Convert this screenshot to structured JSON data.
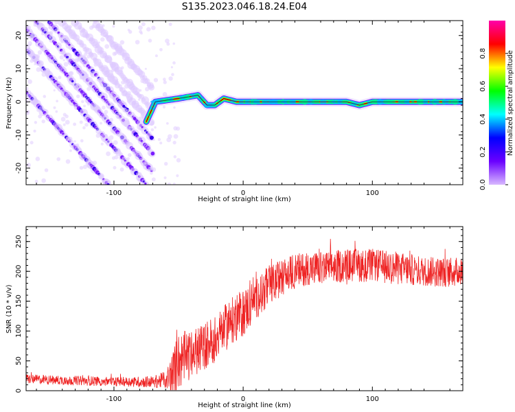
{
  "title": "S135.2023.046.18.24.E04",
  "colorbar": {
    "label": "Normalized spectral amplitude",
    "ticks": [
      "0.0",
      "0.2",
      "0.4",
      "0.6",
      "0.8"
    ],
    "tick_values": [
      0.0,
      0.2,
      0.4,
      0.6,
      0.8
    ],
    "range": [
      0,
      1
    ],
    "stops": [
      "#ffffff",
      "#d8b8ff",
      "#6a00ff",
      "#0000ff",
      "#00ffff",
      "#00ff00",
      "#ffff00",
      "#ff0000",
      "#ff00aa"
    ]
  },
  "chart_data": [
    {
      "type": "heatmap",
      "title": "",
      "xlabel": "Height of straight line (km)",
      "ylabel": "Frequency (Hz)",
      "xlim": [
        -168,
        170
      ],
      "ylim": [
        -25,
        24.5
      ],
      "xticks": [
        -100,
        0,
        100
      ],
      "xtick_labels": [
        "-100",
        "0",
        "100"
      ],
      "yticks": [
        -20,
        -10,
        0,
        10,
        20
      ],
      "ytick_labels": [
        "-20",
        "-10",
        "0",
        "10",
        "20"
      ],
      "diagonal_lines": {
        "slope_hz_per_km": -0.44,
        "x_start_km": [
          -168,
          -168,
          -168,
          -160,
          -150,
          -140,
          -130,
          -115
        ],
        "y_start_hz": [
          22,
          16,
          3,
          24,
          24,
          24,
          24,
          24
        ],
        "ends_near_km": -70
      },
      "signal_path": [
        {
          "x": -75,
          "y": -6
        },
        {
          "x": -68,
          "y": 0
        },
        {
          "x": -50,
          "y": 1
        },
        {
          "x": -35,
          "y": 2
        },
        {
          "x": -28,
          "y": -1
        },
        {
          "x": -22,
          "y": -1
        },
        {
          "x": -15,
          "y": 1
        },
        {
          "x": -5,
          "y": 0
        },
        {
          "x": 80,
          "y": 0
        },
        {
          "x": 90,
          "y": -1
        },
        {
          "x": 100,
          "y": 0
        },
        {
          "x": 170,
          "y": 0
        }
      ]
    },
    {
      "type": "line",
      "title": "",
      "xlabel": "Height of straight line (km)",
      "ylabel": "SNR (10 * v/v)",
      "xlim": [
        -168,
        170
      ],
      "ylim": [
        0,
        275
      ],
      "xticks": [
        -100,
        0,
        100
      ],
      "xtick_labels": [
        "-100",
        "0",
        "100"
      ],
      "yticks": [
        0,
        50,
        100,
        150,
        200,
        250
      ],
      "ytick_labels": [
        "0",
        "50",
        "100",
        "150",
        "200",
        "250"
      ],
      "color": "#ee2222",
      "series": [
        {
          "name": "SNR",
          "x": [
            -168,
            -150,
            -130,
            -110,
            -90,
            -70,
            -60,
            -55,
            -50,
            -45,
            -40,
            -30,
            -20,
            -10,
            0,
            10,
            20,
            30,
            40,
            50,
            60,
            80,
            100,
            120,
            140,
            160,
            170
          ],
          "y": [
            20,
            18,
            17,
            16,
            15,
            15,
            18,
            25,
            50,
            55,
            60,
            75,
            90,
            115,
            130,
            155,
            175,
            190,
            200,
            205,
            205,
            210,
            210,
            205,
            200,
            198,
            200
          ],
          "noise_amplitude": [
            8,
            8,
            8,
            8,
            8,
            10,
            15,
            40,
            50,
            45,
            40,
            40,
            40,
            40,
            40,
            35,
            35,
            30,
            30,
            28,
            28,
            28,
            28,
            28,
            25,
            25,
            25
          ]
        }
      ]
    }
  ]
}
